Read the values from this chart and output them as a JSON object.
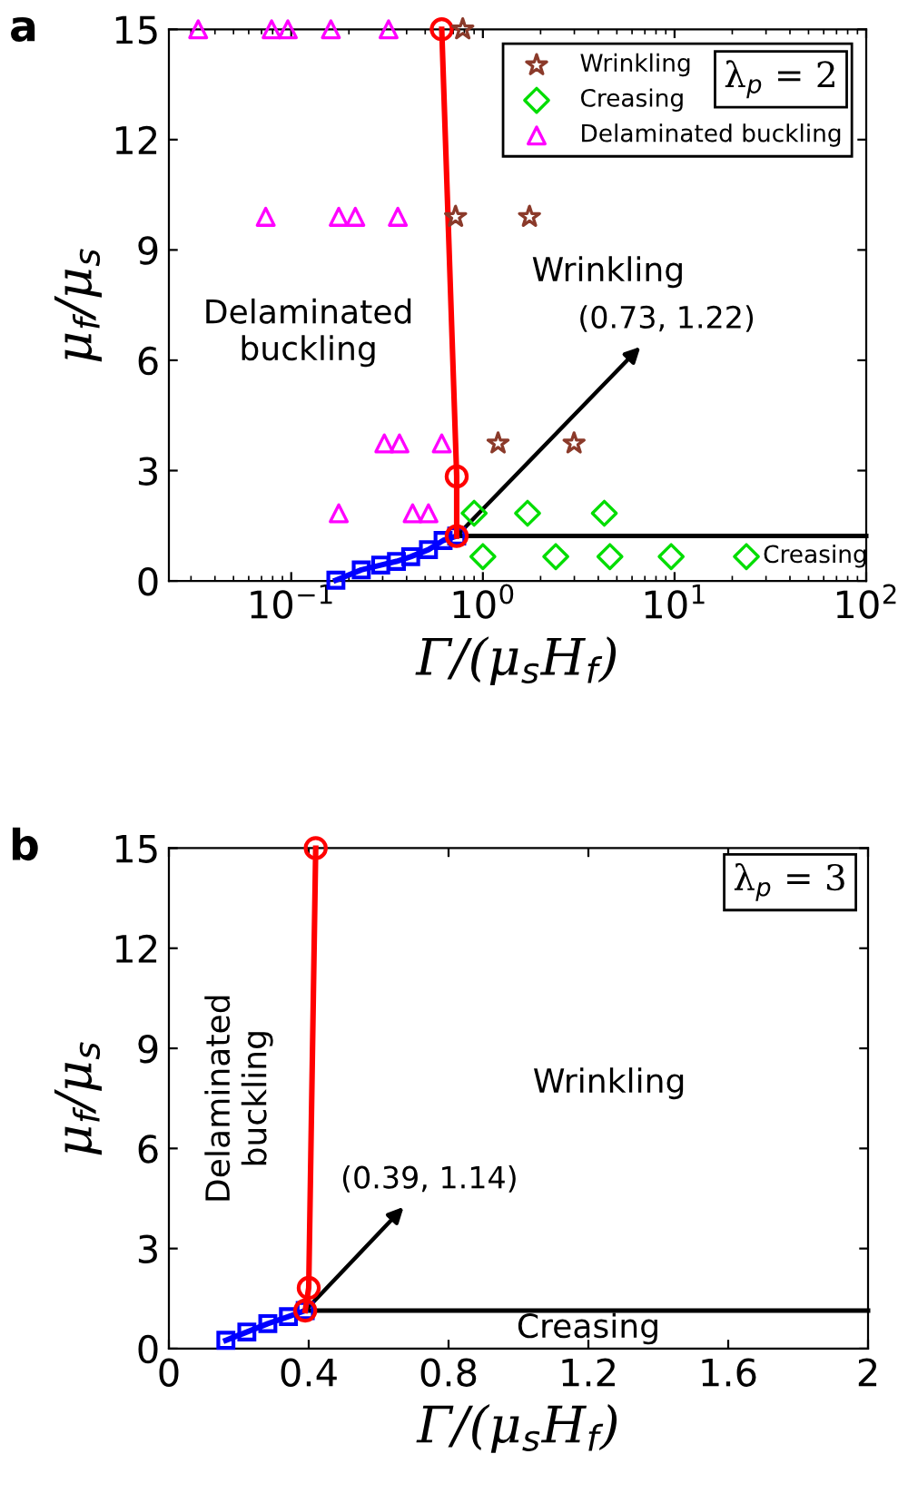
{
  "chart_data": [
    {
      "type": "scatter",
      "title": "a",
      "xlabel": "Γ/(μ$_{s}$H$_{f}$)",
      "ylabel": "μ$_{f}$/μ$_{s}$",
      "log": "x",
      "xlim": [
        0.023,
        100
      ],
      "xticks": [
        {
          "value": 0.1,
          "label": "10$^{−1}$"
        },
        {
          "value": 1,
          "label": "10$^{0}$"
        },
        {
          "value": 10,
          "label": "10$^{1}$"
        },
        {
          "value": 100,
          "label": "10$^{2}$"
        }
      ],
      "ylim": [
        0,
        15
      ],
      "yticks": [
        0,
        3,
        6,
        9,
        12,
        15
      ],
      "grid": false,
      "legend": "top right",
      "series": [
        {
          "name": "Wrinkling",
          "type": "scatter",
          "marker": "star",
          "color": "#8b3a2a",
          "x": [
            0.785,
            0.72,
            1.75,
            1.2,
            2.99
          ],
          "values": [
            15,
            9.9,
            9.9,
            3.74,
            3.74
          ]
        },
        {
          "name": "Creasing",
          "type": "scatter",
          "marker": "diamond",
          "color": "#00dd00",
          "x": [
            0.9,
            1.71,
            4.3,
            1.0,
            2.4,
            4.6,
            9.6,
            23.7
          ],
          "values": [
            1.84,
            1.84,
            1.84,
            0.66,
            0.66,
            0.66,
            0.66,
            0.66
          ]
        },
        {
          "name": "Delaminated buckling",
          "type": "scatter",
          "marker": "triangle",
          "color": "#ff00ff",
          "x": [
            0.0327,
            0.079,
            0.096,
            0.161,
            0.322,
            0.0736,
            0.177,
            0.216,
            0.36,
            0.306,
            0.367,
            0.61,
            0.177,
            0.43,
            0.52
          ],
          "values": [
            15,
            15,
            15,
            15,
            15,
            9.9,
            9.9,
            9.9,
            9.9,
            3.74,
            3.74,
            3.74,
            1.84,
            1.84,
            1.84
          ]
        },
        {
          "type": "line",
          "marker": "circle",
          "color": "#ff0000",
          "x": [
            0.73,
            0.73,
            0.61
          ],
          "values": [
            1.22,
            2.84,
            15
          ]
        },
        {
          "type": "line",
          "marker": "square",
          "color": "#0000ff",
          "x": [
            0.171,
            0.232,
            0.293,
            0.354,
            0.42,
            0.52,
            0.62,
            0.73
          ],
          "values": [
            0.02,
            0.3,
            0.43,
            0.53,
            0.66,
            0.85,
            1.1,
            1.22
          ]
        },
        {
          "type": "line",
          "marker": "none",
          "color": "#000000",
          "x": [
            0.73,
            100
          ],
          "values": [
            1.22,
            1.22
          ]
        }
      ],
      "annotations": [
        {
          "text": "(0.73, 1.22)",
          "x": 0.73,
          "y": 1.22
        },
        "Delaminated\nbuckling",
        "Wrinkling",
        "Creasing",
        "λ$_{p}$ = 2"
      ]
    },
    {
      "type": "scatter",
      "title": "b",
      "xlabel": "Γ/(μ$_{s}$H$_{f}$)",
      "ylabel": "μ$_{f}$/μ$_{s}$",
      "xlim": [
        0,
        2
      ],
      "xticks": [
        0,
        0.4,
        0.8,
        1.2,
        1.6,
        2
      ],
      "ylim": [
        0,
        15
      ],
      "yticks": [
        0,
        3,
        6,
        9,
        12,
        15
      ],
      "grid": false,
      "series": [
        {
          "type": "line",
          "marker": "circle",
          "color": "#ff0000",
          "x": [
            0.39,
            0.4,
            0.42
          ],
          "values": [
            1.14,
            1.82,
            15
          ]
        },
        {
          "type": "line",
          "marker": "square",
          "color": "#0000ff",
          "x": [
            0.163,
            0.223,
            0.283,
            0.342,
            0.39
          ],
          "values": [
            0.25,
            0.5,
            0.75,
            0.96,
            1.14
          ]
        },
        {
          "type": "line",
          "marker": "none",
          "color": "#000000",
          "x": [
            0.39,
            2
          ],
          "values": [
            1.14,
            1.14
          ]
        }
      ],
      "annotations": [
        {
          "text": "(0.39, 1.14)",
          "x": 0.39,
          "y": 1.14
        },
        "Delaminated\nbuckling",
        "Wrinkling",
        "Creasing",
        "λ$_{p}$ = 3"
      ]
    }
  ]
}
